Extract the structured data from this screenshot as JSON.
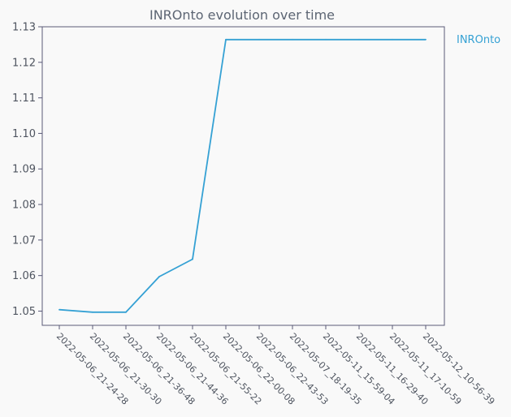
{
  "chart_data": {
    "type": "line",
    "title": "INROnto evolution over time",
    "xlabel": "",
    "ylabel": "",
    "categories": [
      "2022-05-06_21-24-28",
      "2022-05-06_21-30-30",
      "2022-05-06_21-36-48",
      "2022-05-06_21-44-36",
      "2022-05-06_21-55-22",
      "2022-05-06_22-00-08",
      "2022-05-06_22-43-53",
      "2022-05-07_18-19-35",
      "2022-05-11_15-59-04",
      "2022-05-11_16-29-40",
      "2022-05-11_17-10-59",
      "2022-05-12_10-56-39"
    ],
    "series": [
      {
        "name": "INROnto",
        "color": "#35a1d4",
        "values": [
          1.0504,
          1.0497,
          1.0497,
          1.0597,
          1.0646,
          1.1264,
          1.1264,
          1.1264,
          1.1264,
          1.1264,
          1.1264,
          1.1264
        ]
      }
    ],
    "ylim": [
      1.046,
      1.13
    ],
    "yticks": [
      "1.05",
      "1.06",
      "1.07",
      "1.08",
      "1.09",
      "1.10",
      "1.11",
      "1.12",
      "1.13"
    ],
    "grid": false,
    "legend_position": "right"
  }
}
